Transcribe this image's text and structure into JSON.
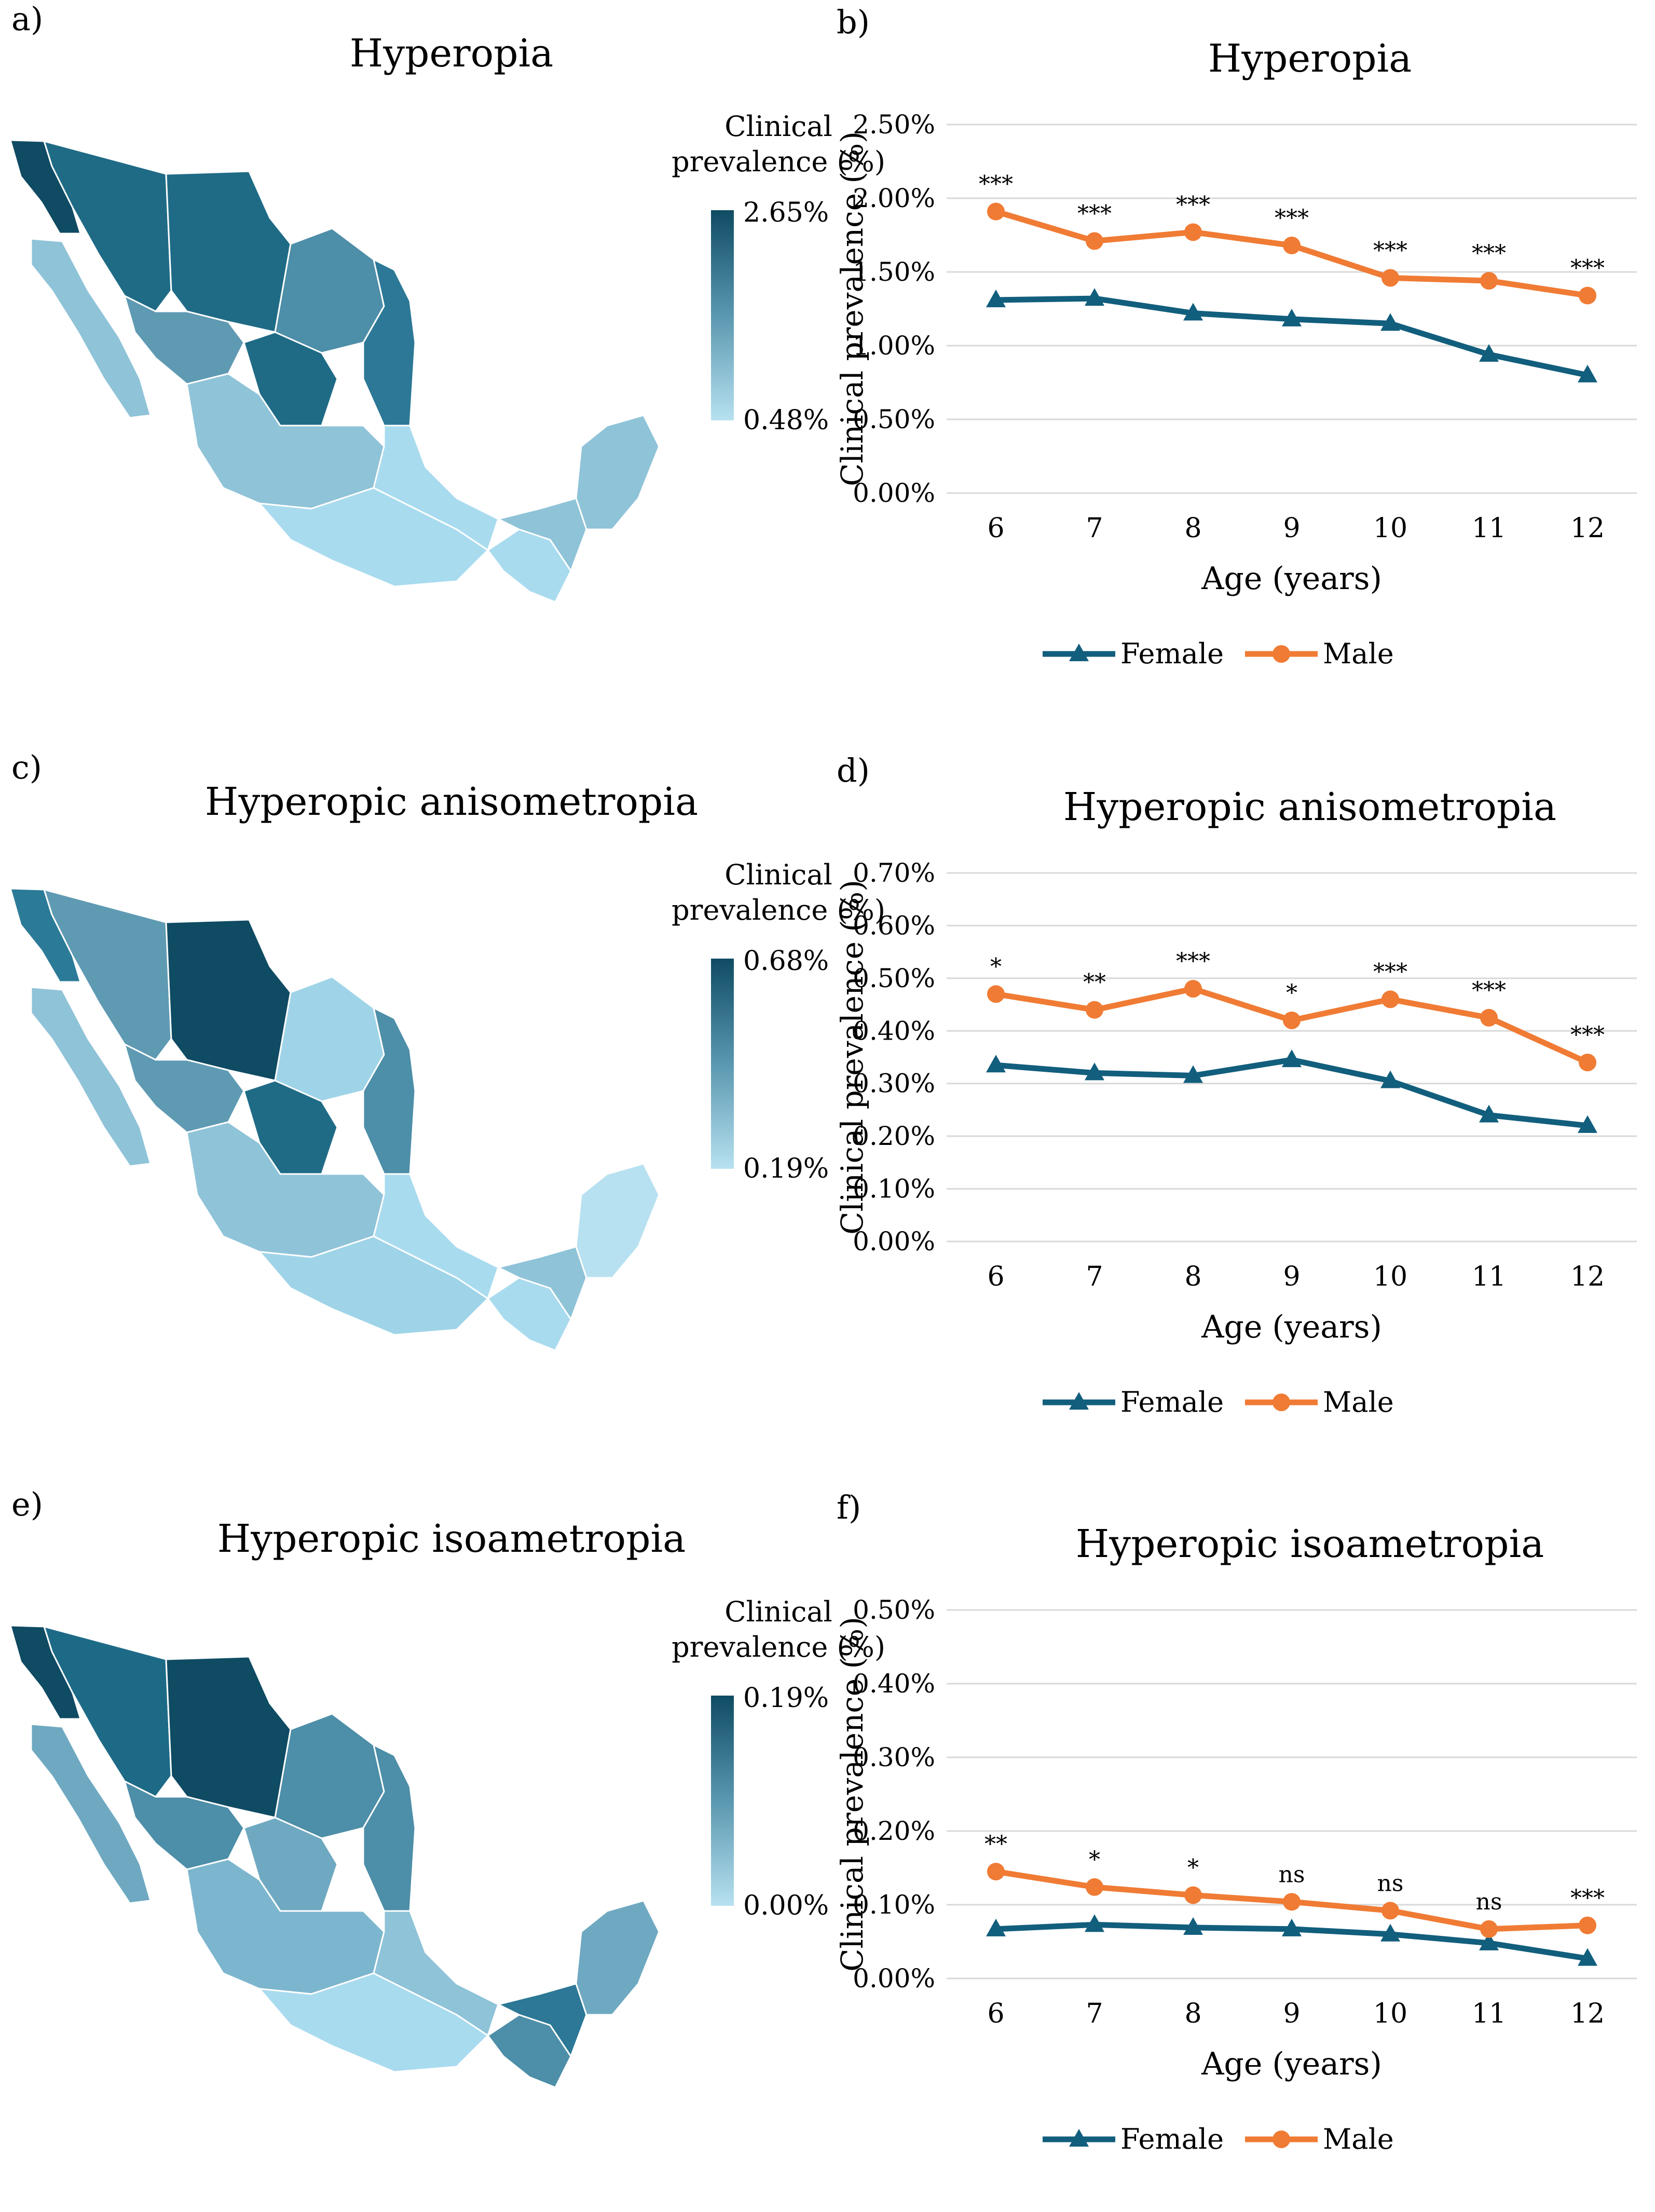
{
  "panels": [
    {
      "label": "a)",
      "title": "Hyperopia",
      "legend_title": "Clinical prevalence (%)",
      "legend_max": "2.65%",
      "legend_min": "0.48%"
    },
    {
      "label": "c)",
      "title": "Hyperopic anisometropia",
      "legend_title": "Clinical prevalence (%)",
      "legend_max": "0.68%",
      "legend_min": "0.19%"
    },
    {
      "label": "e)",
      "title": "Hyperopic isoametropia",
      "legend_title": "Clinical prevalence (%)",
      "legend_max": "0.19%",
      "legend_min": "0.00%"
    }
  ],
  "map_regions": [
    {
      "name": "northwest-baja",
      "fill": [
        "#0f4b63",
        "#2b7b98",
        "#0f4b63"
      ]
    },
    {
      "name": "baja-sur",
      "fill": [
        "#8fc3d8",
        "#8fc3d8",
        "#6fa9c1"
      ]
    },
    {
      "name": "sonora",
      "fill": [
        "#1f6b86",
        "#5f9ab3",
        "#1d6a87"
      ]
    },
    {
      "name": "chihuahua",
      "fill": [
        "#1f6b86",
        "#0f4b63",
        "#0f4b63"
      ]
    },
    {
      "name": "coahuila",
      "fill": [
        "#4d8ea8",
        "#9fd4e8",
        "#4d8ea8"
      ]
    },
    {
      "name": "nuevo-leon-tamaulipas",
      "fill": [
        "#2c7896",
        "#4d8ea8",
        "#4d8ea8"
      ]
    },
    {
      "name": "sinaloa-durango",
      "fill": [
        "#5f9ab3",
        "#5f9ab3",
        "#4d8ea8"
      ]
    },
    {
      "name": "zacatecas",
      "fill": [
        "#1f6b86",
        "#1f6b86",
        "#6fa9c1"
      ]
    },
    {
      "name": "central-west",
      "fill": [
        "#8fc3d8",
        "#8fc3d8",
        "#7cb6ce"
      ]
    },
    {
      "name": "guerrero-oaxaca",
      "fill": [
        "#a9dbef",
        "#9fd4e8",
        "#a9dbef"
      ]
    },
    {
      "name": "veracruz",
      "fill": [
        "#a9dbef",
        "#a9dbef",
        "#8fc3d8"
      ]
    },
    {
      "name": "chiapas",
      "fill": [
        "#a9dbef",
        "#a9dbef",
        "#4d8ea8"
      ]
    },
    {
      "name": "tabasco-campeche",
      "fill": [
        "#8fc3d8",
        "#8fc3d8",
        "#2c7896"
      ]
    },
    {
      "name": "yucatan-qroo",
      "fill": [
        "#8fc3d8",
        "#b7e1f0",
        "#6fa9c1"
      ]
    }
  ],
  "chart_data": [
    {
      "panel_label": "b)",
      "type": "line",
      "title": "Hyperopia",
      "xlabel": "Age (years)",
      "ylabel": "Clinical prevalence (%)",
      "categories": [
        "6",
        "7",
        "8",
        "9",
        "10",
        "11",
        "12"
      ],
      "ylim": [
        0,
        2.5
      ],
      "yticks": [
        "0.00%",
        "0.50%",
        "1.00%",
        "1.50%",
        "2.00%",
        "2.50%"
      ],
      "series": [
        {
          "name": "Female",
          "color": "#125e7d",
          "marker": "triangle",
          "values": [
            1.31,
            1.32,
            1.22,
            1.18,
            1.15,
            0.94,
            0.8
          ]
        },
        {
          "name": "Male",
          "color": "#f07b34",
          "marker": "circle",
          "values": [
            1.91,
            1.71,
            1.77,
            1.68,
            1.46,
            1.44,
            1.34
          ]
        }
      ],
      "significance": [
        "***",
        "***",
        "***",
        "***",
        "***",
        "***",
        "***"
      ]
    },
    {
      "panel_label": "d)",
      "type": "line",
      "title": "Hyperopic anisometropia",
      "xlabel": "Age (years)",
      "ylabel": "Clinical prevalence (%)",
      "categories": [
        "6",
        "7",
        "8",
        "9",
        "10",
        "11",
        "12"
      ],
      "ylim": [
        0,
        0.7
      ],
      "yticks": [
        "0.00%",
        "0.10%",
        "0.20%",
        "0.30%",
        "0.40%",
        "0.50%",
        "0.60%",
        "0.70%"
      ],
      "series": [
        {
          "name": "Female",
          "color": "#125e7d",
          "marker": "triangle",
          "values": [
            0.335,
            0.32,
            0.315,
            0.345,
            0.305,
            0.24,
            0.22
          ]
        },
        {
          "name": "Male",
          "color": "#f07b34",
          "marker": "circle",
          "values": [
            0.47,
            0.44,
            0.48,
            0.42,
            0.46,
            0.425,
            0.34
          ]
        }
      ],
      "significance": [
        "*",
        "**",
        "***",
        "*",
        "***",
        "***",
        "***"
      ]
    },
    {
      "panel_label": "f)",
      "type": "line",
      "title": "Hyperopic isoametropia",
      "xlabel": "Age (years)",
      "ylabel": "Clinical prevalence (%)",
      "categories": [
        "6",
        "7",
        "8",
        "9",
        "10",
        "11",
        "12"
      ],
      "ylim": [
        0,
        0.5
      ],
      "yticks": [
        "0.00%",
        "0.10%",
        "0.20%",
        "0.30%",
        "0.40%",
        "0.50%"
      ],
      "series": [
        {
          "name": "Female",
          "color": "#125e7d",
          "marker": "triangle",
          "values": [
            0.067,
            0.073,
            0.069,
            0.067,
            0.06,
            0.048,
            0.027
          ]
        },
        {
          "name": "Male",
          "color": "#f07b34",
          "marker": "circle",
          "values": [
            0.145,
            0.124,
            0.113,
            0.104,
            0.092,
            0.067,
            0.072
          ]
        }
      ],
      "significance": [
        "**",
        "*",
        "*",
        "ns",
        "ns",
        "ns",
        "***"
      ]
    }
  ]
}
